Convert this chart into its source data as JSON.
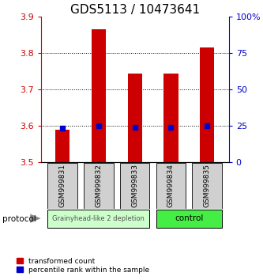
{
  "title": "GDS5113 / 10473641",
  "samples": [
    "GSM999831",
    "GSM999832",
    "GSM999833",
    "GSM999834",
    "GSM999835"
  ],
  "red_values": [
    3.59,
    3.865,
    3.745,
    3.745,
    3.815
  ],
  "blue_values": [
    3.595,
    3.601,
    3.596,
    3.596,
    3.601
  ],
  "ylim_left": [
    3.5,
    3.9
  ],
  "ylim_right": [
    0,
    100
  ],
  "yticks_left": [
    3.5,
    3.6,
    3.7,
    3.8,
    3.9
  ],
  "yticks_right": [
    0,
    25,
    50,
    75,
    100
  ],
  "ytick_labels_right": [
    "0",
    "25",
    "50",
    "75",
    "100%"
  ],
  "bar_bottom": 3.5,
  "bar_color": "#cc0000",
  "dot_color": "#0000cc",
  "group1_label": "Grainyhead-like 2 depletion",
  "group2_label": "control",
  "group1_color": "#ccffcc",
  "group2_color": "#44ee44",
  "protocol_label": "protocol",
  "legend_red": "transformed count",
  "legend_blue": "percentile rank within the sample",
  "title_fontsize": 11,
  "tick_fontsize": 8,
  "sample_fontsize": 6.5,
  "bar_width": 0.4
}
